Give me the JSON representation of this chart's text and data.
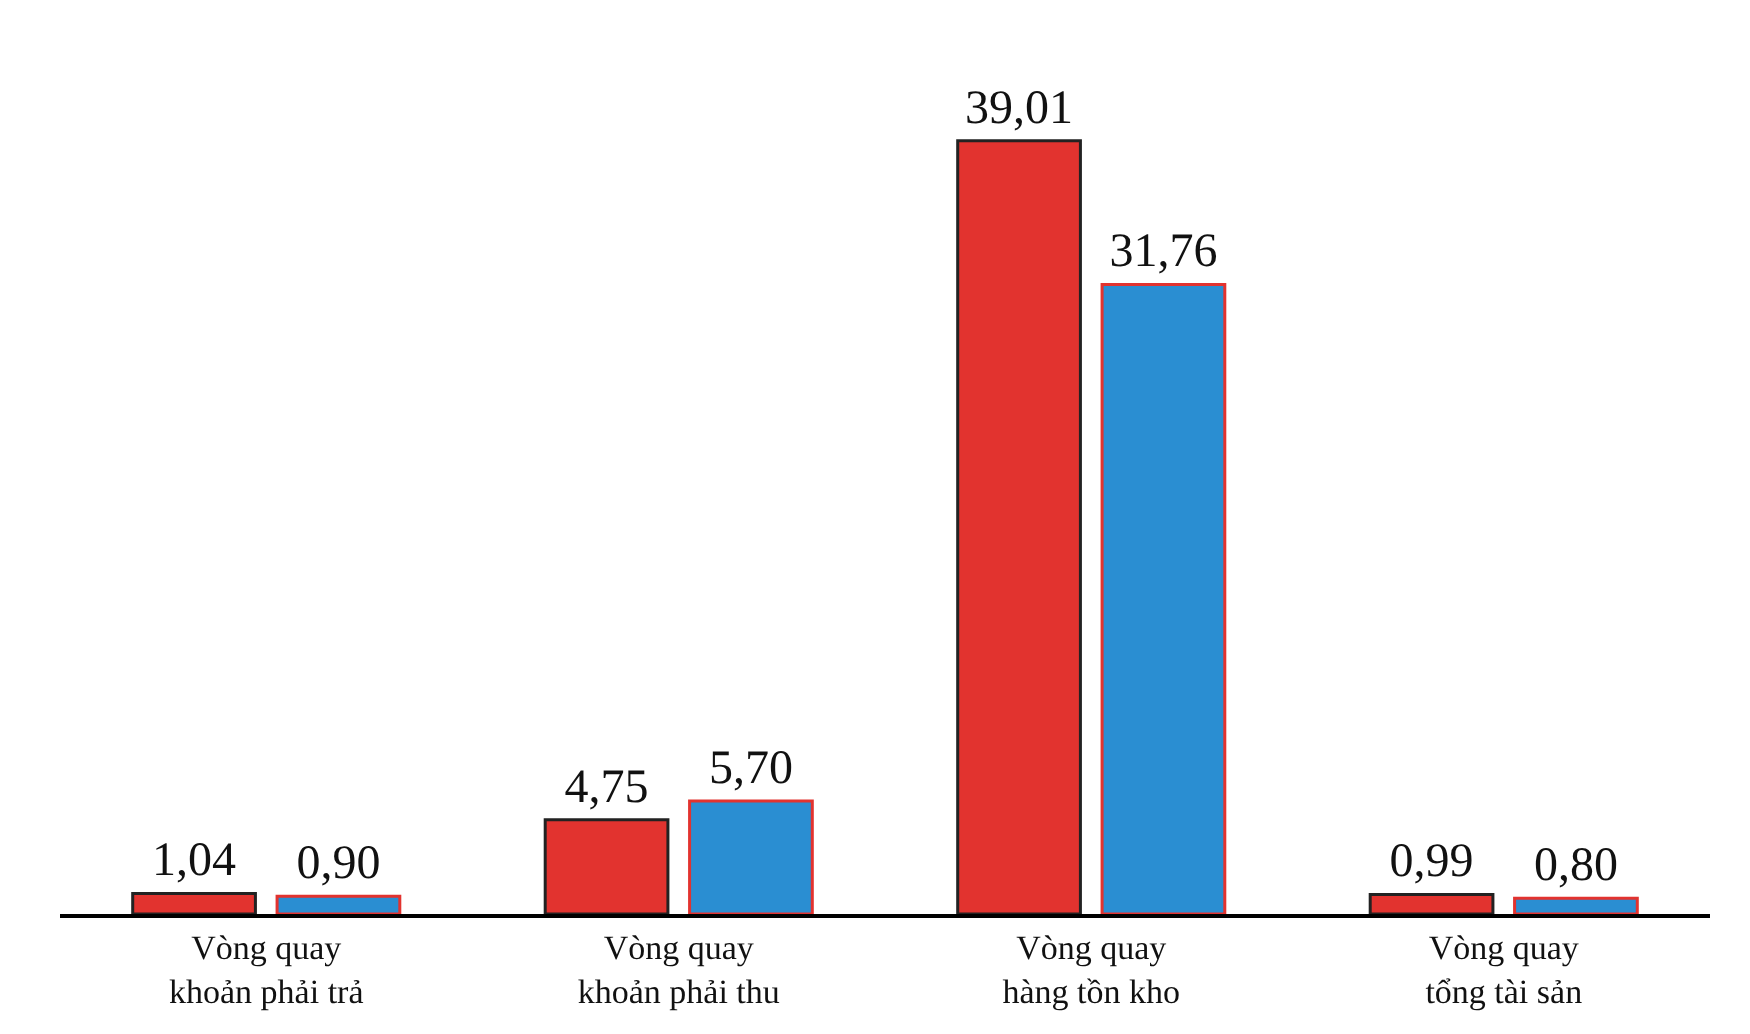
{
  "chart_data": {
    "type": "bar",
    "categories": [
      "Vòng quay\nkhoản phải trả",
      "Vòng quay\nkhoản phải thu",
      "Vòng quay\nhàng tồn kho",
      "Vòng quay\ntổng tài sản"
    ],
    "series": [
      {
        "color": "#e2332f",
        "values": [
          1.04,
          4.75,
          39.01,
          0.99
        ],
        "value_labels": [
          "1,04",
          "4,75",
          "39,01",
          "0,99"
        ]
      },
      {
        "color": "#2a8ed2",
        "values": [
          0.9,
          5.7,
          31.76,
          0.8
        ],
        "value_labels": [
          "0,90",
          "5,70",
          "31,76",
          "0,80"
        ]
      }
    ],
    "legend": false
  }
}
